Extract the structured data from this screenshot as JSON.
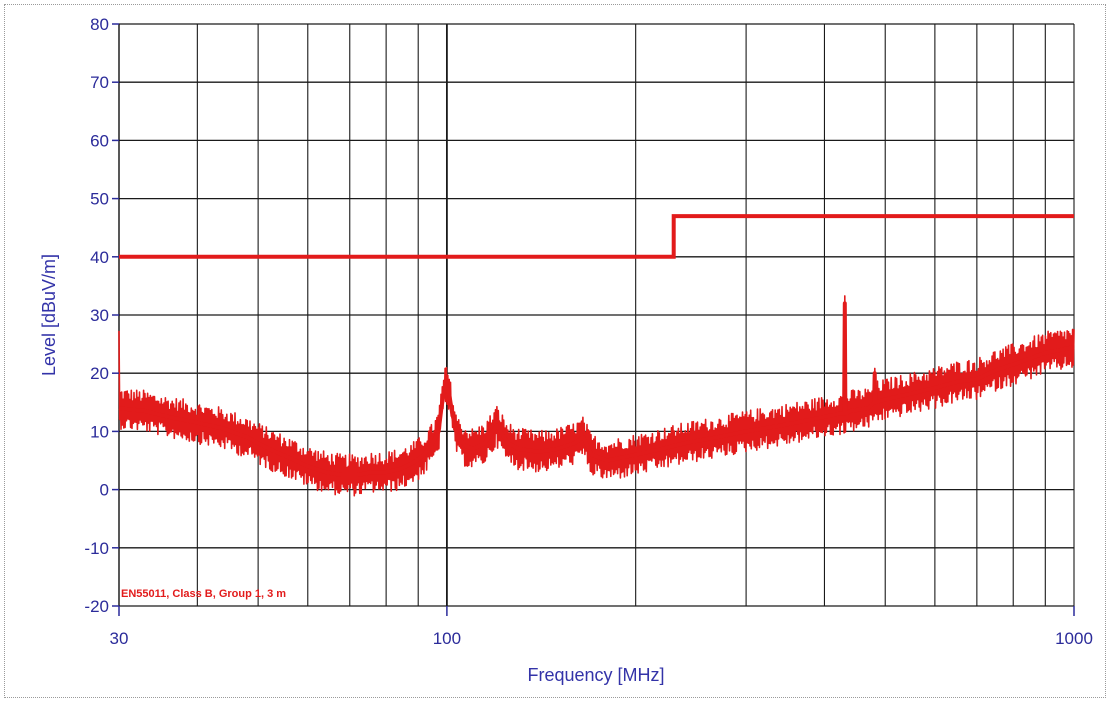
{
  "chart_data": {
    "type": "line",
    "xlabel": "Frequency [MHz]",
    "ylabel": "Level [dBuV/m]",
    "xscale": "log",
    "xlim": [
      30,
      1000
    ],
    "ylim": [
      -20,
      80
    ],
    "y_ticks": [
      -20,
      -10,
      0,
      10,
      20,
      30,
      40,
      50,
      60,
      70,
      80
    ],
    "x_tick_labels": [
      {
        "value": 30,
        "label": "30"
      },
      {
        "value": 100,
        "label": "100"
      },
      {
        "value": 1000,
        "label": "1000"
      }
    ],
    "x_gridlines": [
      30,
      40,
      50,
      60,
      70,
      80,
      90,
      100,
      200,
      300,
      400,
      500,
      600,
      700,
      800,
      900,
      1000
    ],
    "grid": true,
    "annotation": "EN55011, Class B, Group 1, 3 m",
    "colors": {
      "series": "#e21b1b",
      "axis_text": "#2b2b9a",
      "grid": "#1a1a1a"
    },
    "series": [
      {
        "role": "limit",
        "x": [
          30,
          230,
          230,
          1000
        ],
        "y": [
          40,
          40,
          47,
          47
        ]
      },
      {
        "role": "measured",
        "x": [
          30,
          33,
          36,
          40,
          44,
          48,
          52,
          56,
          60,
          64,
          68,
          72,
          76,
          80,
          84,
          88,
          92,
          95,
          97,
          98,
          99,
          100,
          101,
          102,
          104,
          107,
          110,
          115,
          120,
          125,
          130,
          140,
          150,
          160,
          165,
          170,
          180,
          190,
          200,
          220,
          240,
          270,
          300,
          340,
          380,
          420,
          430,
          431,
          432,
          440,
          470,
          480,
          481,
          482,
          500,
          550,
          600,
          650,
          700,
          750,
          800,
          850,
          900,
          950,
          1000
        ],
        "y": [
          14,
          13.5,
          12.5,
          11.5,
          10.5,
          9,
          7,
          5.5,
          4,
          3,
          2.5,
          2.5,
          3,
          3,
          3.5,
          4.5,
          6,
          8,
          10,
          14,
          17,
          18,
          16,
          13,
          9,
          7.5,
          7,
          8,
          11,
          8,
          7,
          6.5,
          7,
          8,
          9,
          6,
          5,
          5.5,
          6,
          7,
          8,
          9,
          10,
          11,
          12,
          13,
          13,
          32,
          13,
          13.5,
          14,
          15,
          20,
          15,
          15.5,
          16.5,
          17.5,
          18.5,
          19,
          20.5,
          21.5,
          22.5,
          23.5,
          24,
          24.5
        ]
      }
    ]
  }
}
